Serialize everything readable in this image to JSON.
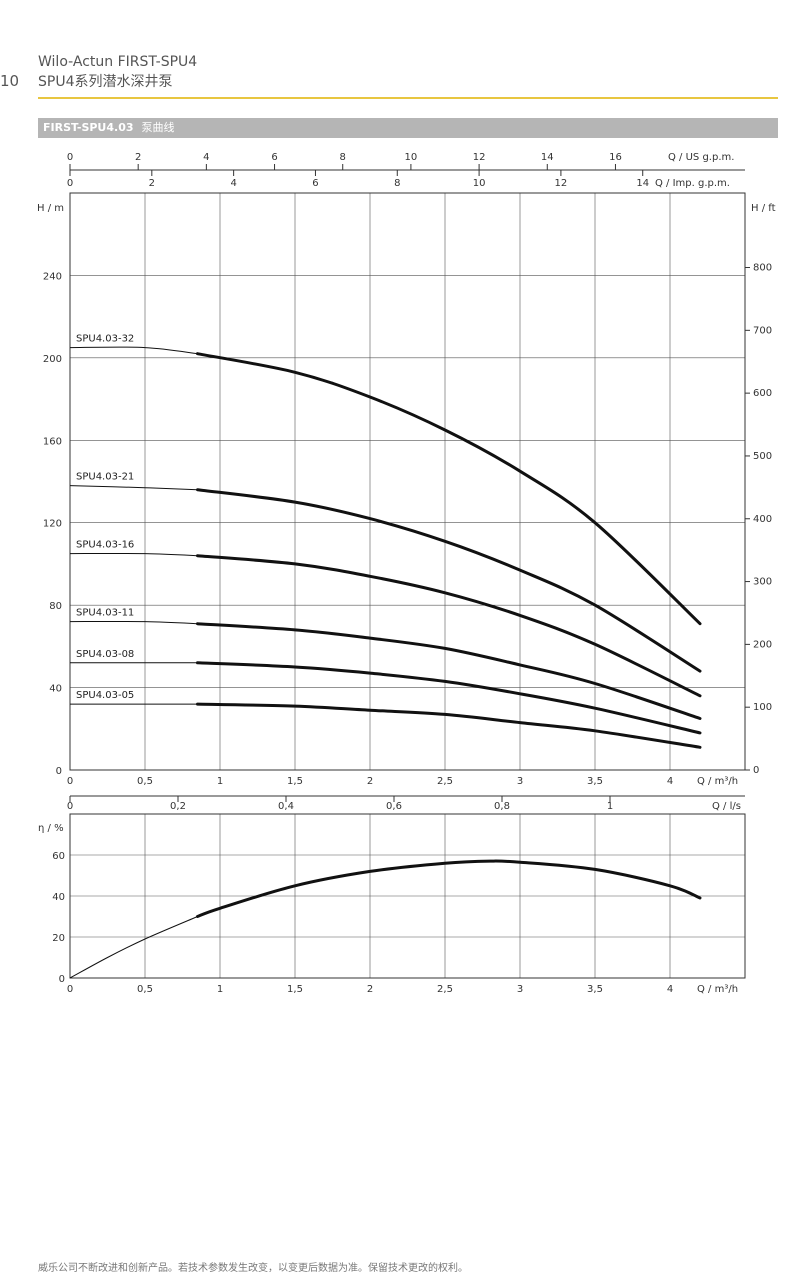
{
  "page": {
    "page_number": "10",
    "header_line1": "Wilo-Actun FIRST-SPU4",
    "header_line2": "SPU4系列潜水深井泵",
    "section_label": "FIRST-SPU4.03",
    "section_title": "泵曲线",
    "footer": "威乐公司不断改进和创新产品。若技术参数发生改变，以变更后数据为准。保留技术更改的权利。",
    "colors": {
      "accent_rule": "#e8c640",
      "section_bar": "#b5b5b5"
    }
  },
  "chart_data": [
    {
      "type": "line",
      "id": "head",
      "top_axes": [
        {
          "label": "Q / US g.p.m.",
          "ticks": [
            "0",
            "2",
            "4",
            "6",
            "8",
            "10",
            "12",
            "14",
            "16"
          ],
          "range": [
            0,
            19.8
          ]
        },
        {
          "label": "Q / Imp. g.p.m.",
          "ticks": [
            "0",
            "2",
            "4",
            "6",
            "8",
            "10",
            "12",
            "14"
          ],
          "range": [
            0,
            16.5
          ]
        }
      ],
      "xlabel": "Q / m³/h",
      "xticks": [
        "0",
        "0,5",
        "1",
        "1,5",
        "2",
        "2,5",
        "3",
        "3,5",
        "4"
      ],
      "xlim": [
        0,
        4.5
      ],
      "ylabel": "H / m",
      "yticks": [
        "0",
        "40",
        "80",
        "120",
        "160",
        "200",
        "240"
      ],
      "ylim": [
        0,
        280
      ],
      "ylabel_right": "H / ft",
      "yticks_right": [
        "0",
        "100",
        "200",
        "300",
        "400",
        "500",
        "600",
        "700",
        "800"
      ],
      "grid": true,
      "series": [
        {
          "name": "SPU4.03-32",
          "x": [
            0,
            0.5,
            0.85,
            1.5,
            2,
            2.5,
            3,
            3.5,
            4.2
          ],
          "y": [
            205,
            205,
            202,
            193,
            181,
            165,
            145,
            120,
            71
          ]
        },
        {
          "name": "SPU4.03-21",
          "x": [
            0,
            0.5,
            0.85,
            1.5,
            2,
            2.5,
            3,
            3.5,
            4.2
          ],
          "y": [
            138,
            137,
            136,
            130,
            122,
            111,
            97,
            80,
            48
          ]
        },
        {
          "name": "SPU4.03-16",
          "x": [
            0,
            0.5,
            0.85,
            1.5,
            2,
            2.5,
            3,
            3.5,
            4.2
          ],
          "y": [
            105,
            105,
            104,
            100,
            94,
            86,
            75,
            61,
            36
          ]
        },
        {
          "name": "SPU4.03-11",
          "x": [
            0,
            0.5,
            0.85,
            1.5,
            2,
            2.5,
            3,
            3.5,
            4.2
          ],
          "y": [
            72,
            72,
            71,
            68,
            64,
            59,
            51,
            42,
            25
          ]
        },
        {
          "name": "SPU4.03-08",
          "x": [
            0,
            0.5,
            0.85,
            1.5,
            2,
            2.5,
            3,
            3.5,
            4.2
          ],
          "y": [
            52,
            52,
            52,
            50,
            47,
            43,
            37,
            30,
            18
          ]
        },
        {
          "name": "SPU4.03-05",
          "x": [
            0,
            0.5,
            0.85,
            1.5,
            2,
            2.5,
            3,
            3.5,
            4.2
          ],
          "y": [
            32,
            32,
            32,
            31,
            29,
            27,
            23,
            19,
            11
          ]
        }
      ]
    },
    {
      "type": "line",
      "id": "efficiency",
      "top_axis": {
        "label": "Q / l/s",
        "ticks": [
          "0",
          "0,2",
          "0,4",
          "0,6",
          "0,8",
          "1"
        ],
        "range": [
          0,
          1.25
        ]
      },
      "xlabel": "Q / m³/h",
      "xticks": [
        "0",
        "0,5",
        "1",
        "1,5",
        "2",
        "2,5",
        "3",
        "3,5",
        "4"
      ],
      "xlim": [
        0,
        4.5
      ],
      "ylabel": "η / %",
      "yticks": [
        "0",
        "20",
        "40",
        "60"
      ],
      "ylim": [
        0,
        80
      ],
      "grid": true,
      "series": [
        {
          "x": [
            0,
            0.25,
            0.5,
            0.85,
            1.0,
            1.5,
            2,
            2.5,
            2.8,
            3,
            3.5,
            4,
            4.2
          ],
          "y": [
            0,
            10,
            19,
            30,
            34,
            45,
            52,
            56,
            57,
            56.5,
            53,
            45,
            39
          ]
        }
      ]
    }
  ]
}
